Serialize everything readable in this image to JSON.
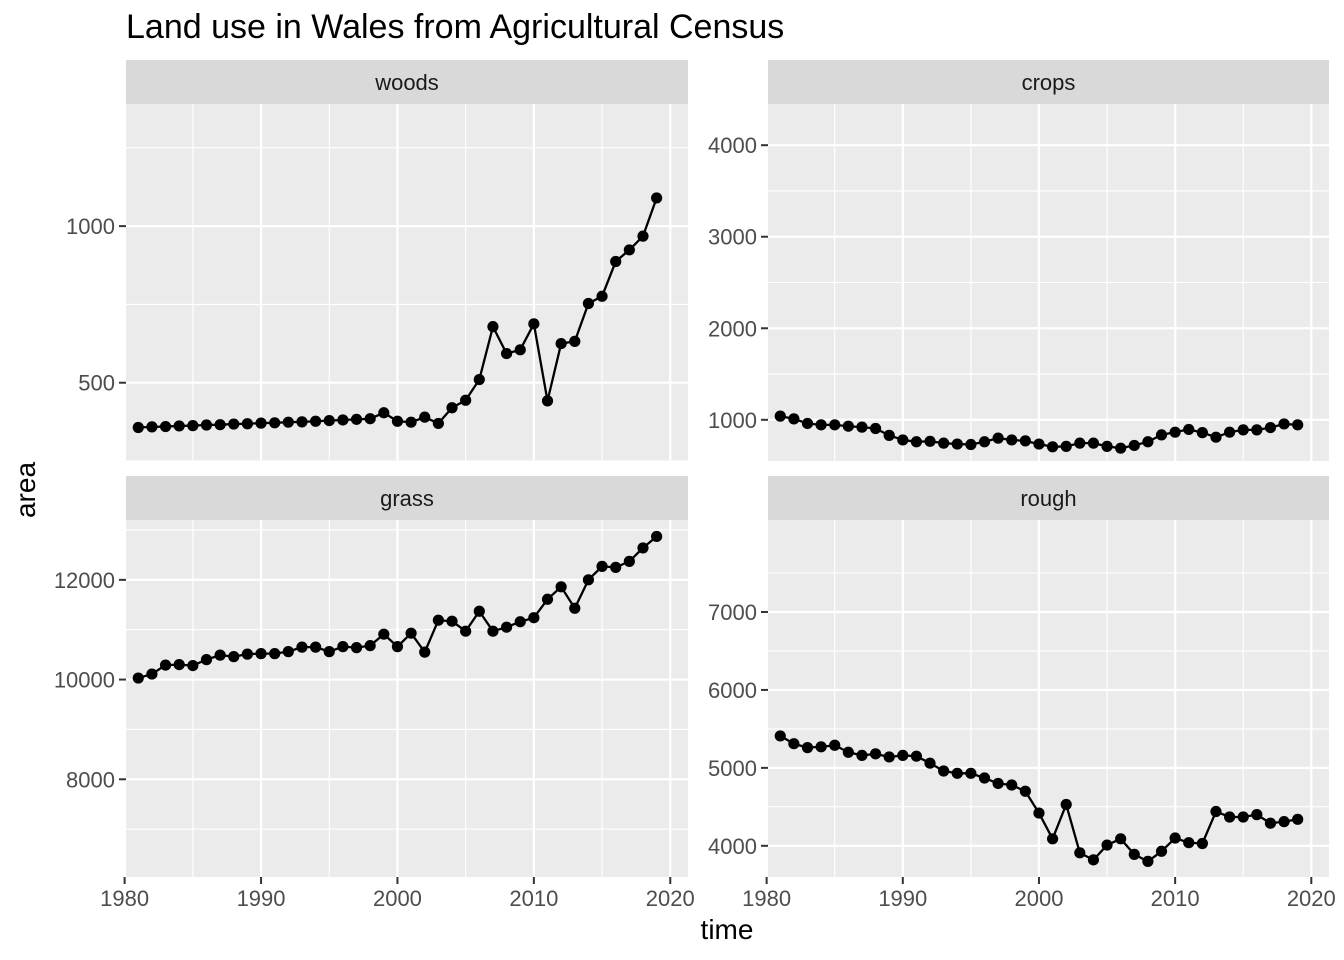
{
  "chart_data": {
    "type": "line",
    "title": "Land use in Wales from Agricultural Census",
    "xlabel": "time",
    "ylabel": "area",
    "marker": "point",
    "grid": true,
    "colors": {
      "panel_background": "#EBEBEB",
      "strip_background": "#D9D9D9",
      "grid": "#FFFFFF",
      "line": "#000000",
      "point": "#000000",
      "tick_label": "#4D4D4D"
    },
    "x": [
      1981,
      1982,
      1983,
      1984,
      1985,
      1986,
      1987,
      1988,
      1989,
      1990,
      1991,
      1992,
      1993,
      1994,
      1995,
      1996,
      1997,
      1998,
      1999,
      2000,
      2001,
      2002,
      2003,
      2004,
      2005,
      2006,
      2007,
      2008,
      2009,
      2010,
      2011,
      2012,
      2013,
      2014,
      2015,
      2016,
      2017,
      2018,
      2019
    ],
    "xlim": [
      1980.1,
      2021.3
    ],
    "xticks": [
      1980,
      1990,
      2000,
      2010,
      2020
    ],
    "xtick_labels": [
      "1980",
      "1990",
      "2000",
      "2010",
      "2020"
    ],
    "panels": [
      {
        "strip": "woods",
        "ylim": [
          250,
          1390
        ],
        "yticks": [
          500,
          1000
        ],
        "ytick_labels": [
          "500",
          "1000"
        ],
        "yminor": [
          250,
          750,
          1250
        ],
        "values": [
          357,
          359,
          360,
          362,
          363,
          365,
          366,
          368,
          369,
          371,
          372,
          374,
          375,
          377,
          379,
          381,
          383,
          385,
          404,
          377,
          374,
          390,
          370,
          420,
          444,
          510,
          679,
          593,
          605,
          688,
          442,
          625,
          632,
          753,
          776,
          887,
          924,
          968,
          1090
        ]
      },
      {
        "strip": "crops",
        "ylim": [
          550,
          4450
        ],
        "yticks": [
          1000,
          2000,
          3000,
          4000
        ],
        "ytick_labels": [
          "1000",
          "2000",
          "3000",
          "4000"
        ],
        "yminor": [
          1500,
          2500,
          3500
        ],
        "values": [
          1040,
          1010,
          960,
          945,
          945,
          930,
          920,
          905,
          830,
          780,
          760,
          765,
          745,
          735,
          730,
          760,
          800,
          780,
          770,
          735,
          705,
          710,
          745,
          745,
          710,
          690,
          720,
          760,
          835,
          865,
          895,
          860,
          810,
          865,
          890,
          890,
          915,
          955,
          945
        ]
      },
      {
        "strip": "grass",
        "ylim": [
          6040,
          13200
        ],
        "yticks": [
          8000,
          10000,
          12000
        ],
        "ytick_labels": [
          "8000",
          "10000",
          "12000"
        ],
        "yminor": [
          7000,
          9000,
          11000,
          13000
        ],
        "values": [
          10030,
          10110,
          10290,
          10300,
          10280,
          10400,
          10490,
          10460,
          10510,
          10520,
          10520,
          10560,
          10650,
          10650,
          10560,
          10660,
          10640,
          10680,
          10910,
          10660,
          10930,
          10550,
          11190,
          11170,
          10970,
          11370,
          10970,
          11050,
          11160,
          11240,
          11610,
          11860,
          11430,
          12000,
          12270,
          12250,
          12370,
          12640,
          12870
        ]
      },
      {
        "strip": "rough",
        "ylim": [
          3600,
          8180
        ],
        "yticks": [
          4000,
          5000,
          6000,
          7000
        ],
        "ytick_labels": [
          "4000",
          "5000",
          "6000",
          "7000"
        ],
        "yminor": [
          4500,
          5500,
          6500,
          7500
        ],
        "values": [
          5410,
          5310,
          5260,
          5270,
          5290,
          5200,
          5160,
          5180,
          5140,
          5160,
          5150,
          5060,
          4960,
          4930,
          4930,
          4870,
          4800,
          4780,
          4700,
          4420,
          4090,
          4530,
          3910,
          3820,
          4010,
          4090,
          3890,
          3800,
          3930,
          4100,
          4040,
          4030,
          4440,
          4370,
          4370,
          4400,
          4290,
          4310,
          4340
        ]
      }
    ]
  }
}
